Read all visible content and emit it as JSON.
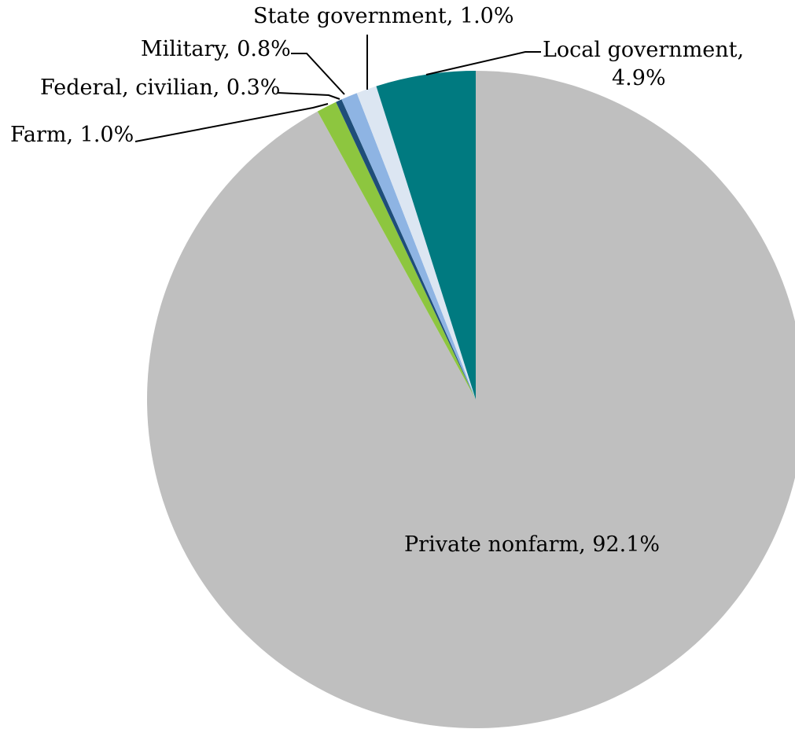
{
  "chart_data": {
    "type": "pie",
    "title": "",
    "start": "12 o'clock",
    "direction": "clockwise",
    "slices": [
      {
        "label": "Private nonfarm, 92.1%",
        "name": "Private nonfarm",
        "value": 92.1,
        "color": "#bfbfbf"
      },
      {
        "label": "Farm, 1.0%",
        "name": "Farm",
        "value": 1.0,
        "color": "#8dc63f"
      },
      {
        "label": "Federal, civilian, 0.3%",
        "name": "Federal, civilian",
        "value": 0.3,
        "color": "#1f4e79"
      },
      {
        "label": "Military, 0.8%",
        "name": "Military",
        "value": 0.8,
        "color": "#8eb4e3"
      },
      {
        "label": "State government, 1.0%",
        "name": "State government",
        "value": 1.0,
        "color": "#dce6f2"
      },
      {
        "label": "Local government, 4.9%",
        "name": "Local government",
        "value": 4.9,
        "color": "#007a80"
      }
    ],
    "label_lines": {
      "private_nonfarm": "Private nonfarm, 92.1%",
      "farm": "Farm, 1.0%",
      "federal_civilian": "Federal, civilian, 0.3%",
      "military": "Military, 0.8%",
      "state_government": "State government, 1.0%",
      "local_government_line1": "Local government,",
      "local_government_line2": "4.9%"
    }
  }
}
